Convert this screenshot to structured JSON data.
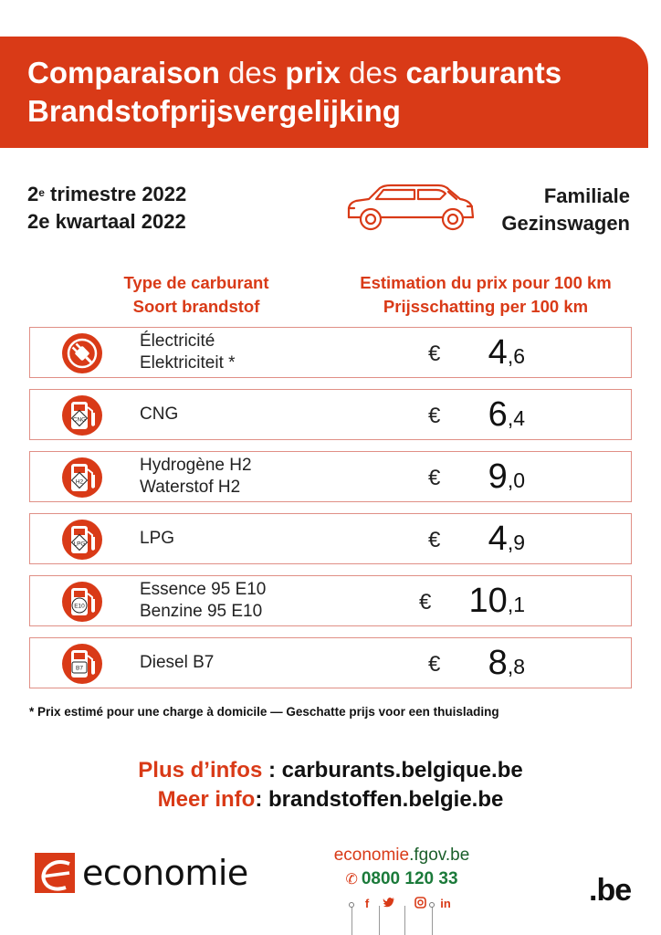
{
  "title": {
    "fr_words": [
      {
        "text": "Comparaison",
        "bold": true
      },
      {
        "text": " des ",
        "bold": false
      },
      {
        "text": "prix",
        "bold": true
      },
      {
        "text": " des ",
        "bold": false
      },
      {
        "text": "carburants",
        "bold": true
      }
    ],
    "nl": "Brandstofprijsvergelijking"
  },
  "period": {
    "fr_num": "2",
    "fr_sup": "e",
    "fr_rest": " trimestre 2022",
    "nl": "2e kwartaal 2022"
  },
  "vehicle": {
    "fr": "Familiale",
    "nl": "Gezinswagen"
  },
  "columns": {
    "type_fr": "Type de carburant",
    "type_nl": "Soort brandstof",
    "price_fr": "Estimation du prix pour 100 km",
    "price_nl": "Prijsschatting per 100 km"
  },
  "currency": "€",
  "fuels": [
    {
      "icon": "electric-plug-icon",
      "line1": "Électricité",
      "line2": "Elektriciteit *",
      "int": "4",
      "dec": ",6"
    },
    {
      "icon": "fuel-pump-cng-icon",
      "line1": "CNG",
      "line2": "",
      "int": "6",
      "dec": ",4",
      "pump_label": "CNG"
    },
    {
      "icon": "fuel-pump-h2-icon",
      "line1": "Hydrogène H2",
      "line2": "Waterstof H2",
      "int": "9",
      "dec": ",0",
      "pump_label": "H2"
    },
    {
      "icon": "fuel-pump-lpg-icon",
      "line1": "LPG",
      "line2": "",
      "int": "4",
      "dec": ",9",
      "pump_label": "LPG"
    },
    {
      "icon": "fuel-pump-e10-icon",
      "line1": "Essence 95 E10",
      "line2": "Benzine 95 E10",
      "int": "10",
      "dec": ",1",
      "pump_label": "E10"
    },
    {
      "icon": "fuel-pump-b7-icon",
      "line1": "Diesel B7",
      "line2": "",
      "int": "8",
      "dec": ",8",
      "pump_label": "B7"
    }
  ],
  "footnote": "* Prix estimé pour une charge à domicile — Geschatte prijs voor een thuislading",
  "more_info": {
    "fr_label": "Plus d’infos",
    "fr_sep": " : ",
    "fr_url": "carburants.belgique.be",
    "nl_label": "Meer info",
    "nl_sep": ": ",
    "nl_url": "brandstoffen.belgie.be"
  },
  "footer": {
    "logo_text": "economie",
    "web_main": "economie",
    "web_suffix": ".fgov.be",
    "phone": "0800 120 33",
    "socials": [
      "f",
      "t",
      "ig",
      "in"
    ],
    "be_logo": ".be"
  },
  "colors": {
    "accent": "#d93a17",
    "green": "#1b7a3a",
    "row_border": "#e08f86"
  }
}
